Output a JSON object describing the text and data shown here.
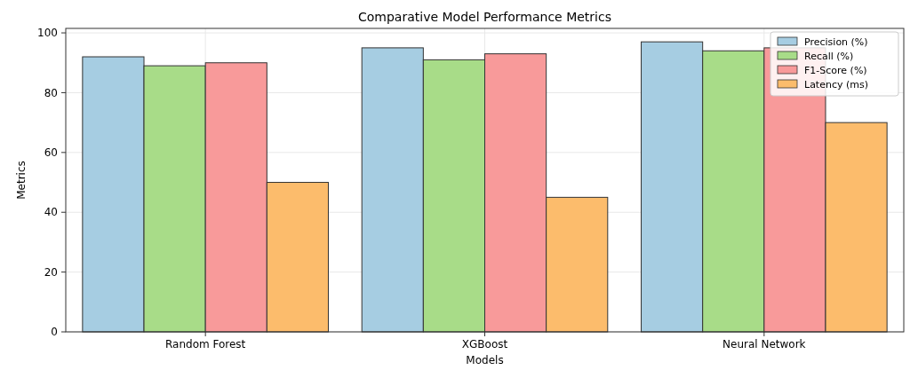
{
  "chart_data": {
    "type": "bar",
    "title": "Comparative Model Performance Metrics",
    "xlabel": "Models",
    "ylabel": "Metrics",
    "categories": [
      "Random Forest",
      "XGBoost",
      "Neural Network"
    ],
    "series": [
      {
        "name": "Precision (%)",
        "color": "#a6cde2",
        "values": [
          92,
          95,
          97
        ]
      },
      {
        "name": "Recall (%)",
        "color": "#a8dc88",
        "values": [
          89,
          91,
          94
        ]
      },
      {
        "name": "F1-Score (%)",
        "color": "#f89a9a",
        "values": [
          90,
          93,
          95
        ]
      },
      {
        "name": "Latency (ms)",
        "color": "#fcbc6c",
        "values": [
          50,
          45,
          70
        ]
      }
    ],
    "ylim": [
      0,
      101.5
    ],
    "yticks": [
      0,
      20,
      40,
      60,
      80,
      100
    ],
    "grid": true,
    "legend": "top right"
  }
}
